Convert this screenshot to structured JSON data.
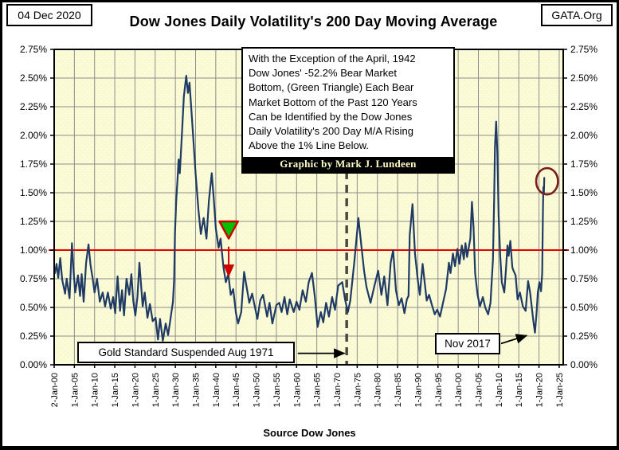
{
  "header": {
    "date": "04 Dec 2020",
    "org": "GATA.Org",
    "title": "Dow Jones Daily Volatility's 200 Day Moving Average"
  },
  "footer": {
    "source": "Source Dow Jones"
  },
  "annotations": {
    "note": {
      "text": "With the Exception of the April, 1942\nDow Jones' -52.2% Bear Market\nBottom, (Green Triangle) Each Bear\nMarket Bottom of the Past 120 Years\nCan be Identified by the Dow Jones\nDaily Volatility's 200 Day M/A Rising\nAbove the 1% Line Below.",
      "credit": "Graphic by Mark J. Lundeen"
    },
    "gold": {
      "label": "Gold Standard Suspended Aug 1971"
    },
    "nov": {
      "label": "Nov 2017"
    }
  },
  "colors": {
    "series_line": "#1f3a64",
    "red_reference": "#e60000",
    "plot_bg": "#fafad2",
    "plot_dot": "#fffff2",
    "grid": "#8e8e8e",
    "dashed_line": "#4a4a42",
    "ellipse": "#7b1e1e",
    "triangle_fill": "#00c000",
    "triangle_border": "#cc0000",
    "red_arrow": "#cc0000",
    "black_arrow": "#000000",
    "plot_border": "#000000"
  },
  "chart_data": {
    "type": "line",
    "title": "Dow Jones Daily Volatility's 200 Day Moving Average",
    "xlabel": "",
    "ylabel": "",
    "grid": true,
    "legend": "none",
    "xlim": [
      1900,
      2026
    ],
    "ylim": [
      0,
      2.75
    ],
    "y_tick_values": [
      0.0,
      0.25,
      0.5,
      0.75,
      1.0,
      1.25,
      1.5,
      1.75,
      2.0,
      2.25,
      2.5,
      2.75
    ],
    "y_tick_labels": [
      "0.00%",
      "0.25%",
      "0.50%",
      "0.75%",
      "1.00%",
      "1.25%",
      "1.50%",
      "1.75%",
      "2.00%",
      "2.25%",
      "2.50%",
      "2.75%"
    ],
    "x_tick_years": [
      1900,
      1905,
      1910,
      1915,
      1920,
      1925,
      1930,
      1935,
      1940,
      1945,
      1950,
      1955,
      1960,
      1965,
      1970,
      1975,
      1980,
      1985,
      1990,
      1995,
      2000,
      2005,
      2010,
      2015,
      2020,
      2025
    ],
    "x_tick_labels": [
      "2-Jan-00",
      "1-Jan-05",
      "1-Jan-10",
      "1-Jan-15",
      "1-Jan-20",
      "1-Jan-25",
      "1-Jan-30",
      "1-Jan-35",
      "1-Jan-40",
      "1-Jan-45",
      "1-Jan-50",
      "1-Jan-55",
      "1-Jan-60",
      "1-Jan-65",
      "1-Jan-70",
      "1-Jan-75",
      "1-Jan-80",
      "1-Jan-85",
      "1-Jan-90",
      "1-Jan-95",
      "1-Jan-00",
      "1-Jan-05",
      "1-Jan-10",
      "1-Jan-15",
      "1-Jan-20",
      "1-Jan-25"
    ],
    "series_name": "Dow Jones daily volatility 200-day moving average",
    "x": [
      1900.2,
      1900.6,
      1901.0,
      1901.5,
      1902.0,
      1902.7,
      1903.1,
      1903.8,
      1904.4,
      1904.8,
      1905.2,
      1905.9,
      1906.4,
      1906.8,
      1907.3,
      1907.9,
      1908.5,
      1909.0,
      1909.5,
      1910.0,
      1910.6,
      1911.3,
      1912.0,
      1912.6,
      1913.3,
      1914.0,
      1914.6,
      1915.1,
      1915.7,
      1916.3,
      1916.8,
      1917.3,
      1917.9,
      1918.6,
      1919.1,
      1919.6,
      1920.1,
      1920.6,
      1921.1,
      1921.9,
      1922.4,
      1923.1,
      1923.7,
      1924.4,
      1925.1,
      1925.7,
      1926.2,
      1926.9,
      1927.6,
      1928.2,
      1928.9,
      1929.4,
      1929.7,
      1929.9,
      1930.2,
      1930.5,
      1930.8,
      1931.1,
      1931.7,
      1932.1,
      1932.7,
      1933.1,
      1933.5,
      1934.3,
      1935.0,
      1935.7,
      1936.3,
      1937.0,
      1937.7,
      1938.3,
      1939.0,
      1939.5,
      1940.0,
      1940.7,
      1941.2,
      1941.9,
      1942.5,
      1943.1,
      1943.7,
      1944.3,
      1945.0,
      1945.5,
      1946.3,
      1947.0,
      1948.3,
      1949.0,
      1950.3,
      1951.0,
      1951.7,
      1952.7,
      1953.3,
      1954.0,
      1955.0,
      1955.7,
      1956.3,
      1957.0,
      1957.7,
      1958.3,
      1959.3,
      1960.0,
      1960.7,
      1961.5,
      1962.3,
      1963.0,
      1963.8,
      1964.5,
      1965.2,
      1966.0,
      1966.6,
      1967.3,
      1968.0,
      1968.8,
      1969.5,
      1970.3,
      1971.3,
      1972.0,
      1972.7,
      1973.3,
      1974.3,
      1975.3,
      1976.0,
      1976.7,
      1977.3,
      1978.3,
      1979.2,
      1980.2,
      1981.0,
      1981.7,
      1982.5,
      1983.3,
      1983.9,
      1984.6,
      1985.3,
      1986.0,
      1986.7,
      1987.3,
      1987.7,
      1988.0,
      1988.7,
      1989.3,
      1990.0,
      1990.5,
      1991.2,
      1992.2,
      1992.8,
      1993.5,
      1994.2,
      1994.8,
      1995.5,
      1996.3,
      1997.0,
      1997.7,
      1998.1,
      1998.7,
      1999.2,
      1999.8,
      2000.3,
      2000.9,
      2001.4,
      2001.8,
      2002.2,
      2003.0,
      2003.4,
      2003.8,
      2004.2,
      2004.8,
      2005.4,
      2006.1,
      2006.7,
      2007.4,
      2008.0,
      2008.6,
      2008.9,
      2009.1,
      2009.4,
      2009.7,
      2010.0,
      2010.4,
      2010.8,
      2011.4,
      2011.8,
      2012.2,
      2012.5,
      2012.9,
      2013.4,
      2013.7,
      2014.2,
      2014.7,
      2015.3,
      2016.0,
      2016.7,
      2017.3,
      2017.8,
      2018.2,
      2018.6,
      2019.0,
      2019.4,
      2019.7,
      2020.1,
      2020.5,
      2020.8,
      2020.9,
      2021.0,
      2021.1,
      2021.2,
      2021.3
    ],
    "y": [
      0.8,
      0.88,
      0.76,
      0.93,
      0.74,
      0.62,
      0.75,
      0.58,
      1.06,
      0.82,
      0.63,
      0.78,
      0.6,
      0.79,
      0.55,
      0.89,
      1.05,
      0.87,
      0.76,
      0.63,
      0.75,
      0.55,
      0.63,
      0.51,
      0.63,
      0.49,
      0.59,
      0.45,
      0.77,
      0.47,
      0.65,
      0.43,
      0.75,
      0.61,
      0.79,
      0.55,
      0.43,
      0.59,
      0.89,
      0.51,
      0.63,
      0.41,
      0.53,
      0.38,
      0.41,
      0.22,
      0.4,
      0.21,
      0.36,
      0.26,
      0.43,
      0.55,
      0.75,
      1.14,
      1.43,
      1.6,
      1.79,
      1.67,
      2.07,
      2.34,
      2.52,
      2.37,
      2.46,
      2.05,
      1.67,
      1.35,
      1.14,
      1.28,
      1.1,
      1.43,
      1.67,
      1.45,
      1.19,
      1.02,
      1.1,
      0.85,
      0.72,
      0.79,
      0.61,
      0.66,
      0.45,
      0.36,
      0.46,
      0.81,
      0.54,
      0.62,
      0.4,
      0.56,
      0.61,
      0.42,
      0.54,
      0.36,
      0.52,
      0.54,
      0.46,
      0.59,
      0.44,
      0.57,
      0.46,
      0.55,
      0.48,
      0.65,
      0.55,
      0.72,
      0.8,
      0.6,
      0.33,
      0.46,
      0.37,
      0.54,
      0.42,
      0.59,
      0.48,
      0.69,
      0.72,
      0.57,
      0.46,
      0.56,
      0.9,
      1.28,
      1.05,
      0.82,
      0.68,
      0.54,
      0.68,
      0.82,
      0.61,
      0.77,
      0.52,
      0.89,
      1.0,
      0.65,
      0.52,
      0.58,
      0.45,
      0.57,
      0.6,
      1.13,
      1.4,
      0.97,
      0.74,
      0.61,
      0.88,
      0.56,
      0.61,
      0.52,
      0.44,
      0.48,
      0.42,
      0.55,
      0.66,
      0.89,
      0.8,
      0.97,
      0.86,
      1.01,
      0.88,
      1.04,
      0.92,
      1.06,
      0.94,
      1.1,
      1.42,
      1.2,
      0.8,
      0.61,
      0.51,
      0.59,
      0.5,
      0.44,
      0.54,
      0.92,
      1.45,
      1.9,
      2.12,
      1.85,
      1.3,
      0.95,
      0.72,
      0.63,
      0.82,
      1.04,
      0.95,
      1.08,
      0.85,
      0.82,
      0.78,
      0.57,
      0.63,
      0.51,
      0.47,
      0.73,
      0.63,
      0.51,
      0.38,
      0.28,
      0.45,
      0.63,
      0.72,
      0.64,
      0.8,
      1.1,
      1.38,
      1.55,
      1.5,
      1.63
    ],
    "reference_lines": {
      "red_horizontal_value": 1.0,
      "dashed_vertical_year": 1972.4
    },
    "markers": {
      "green_triangle": {
        "year": 1943.2,
        "top_value": 1.25,
        "tip_value": 1.1,
        "half_width_years": 2.3
      },
      "red_down_arrow": {
        "year": 1943.2,
        "from_value": 1.03,
        "to_value": 0.77
      },
      "ellipse": {
        "year": 2022.0,
        "value": 1.6,
        "rx_years": 2.7,
        "ry_value": 0.115
      },
      "gold_arrow": {
        "from": [
          1960.3,
          0.1
        ],
        "to": [
          1971.9,
          0.1
        ]
      },
      "nov_arrow": {
        "from": [
          2010.6,
          0.185
        ],
        "to": [
          2017.0,
          0.255
        ]
      }
    }
  }
}
